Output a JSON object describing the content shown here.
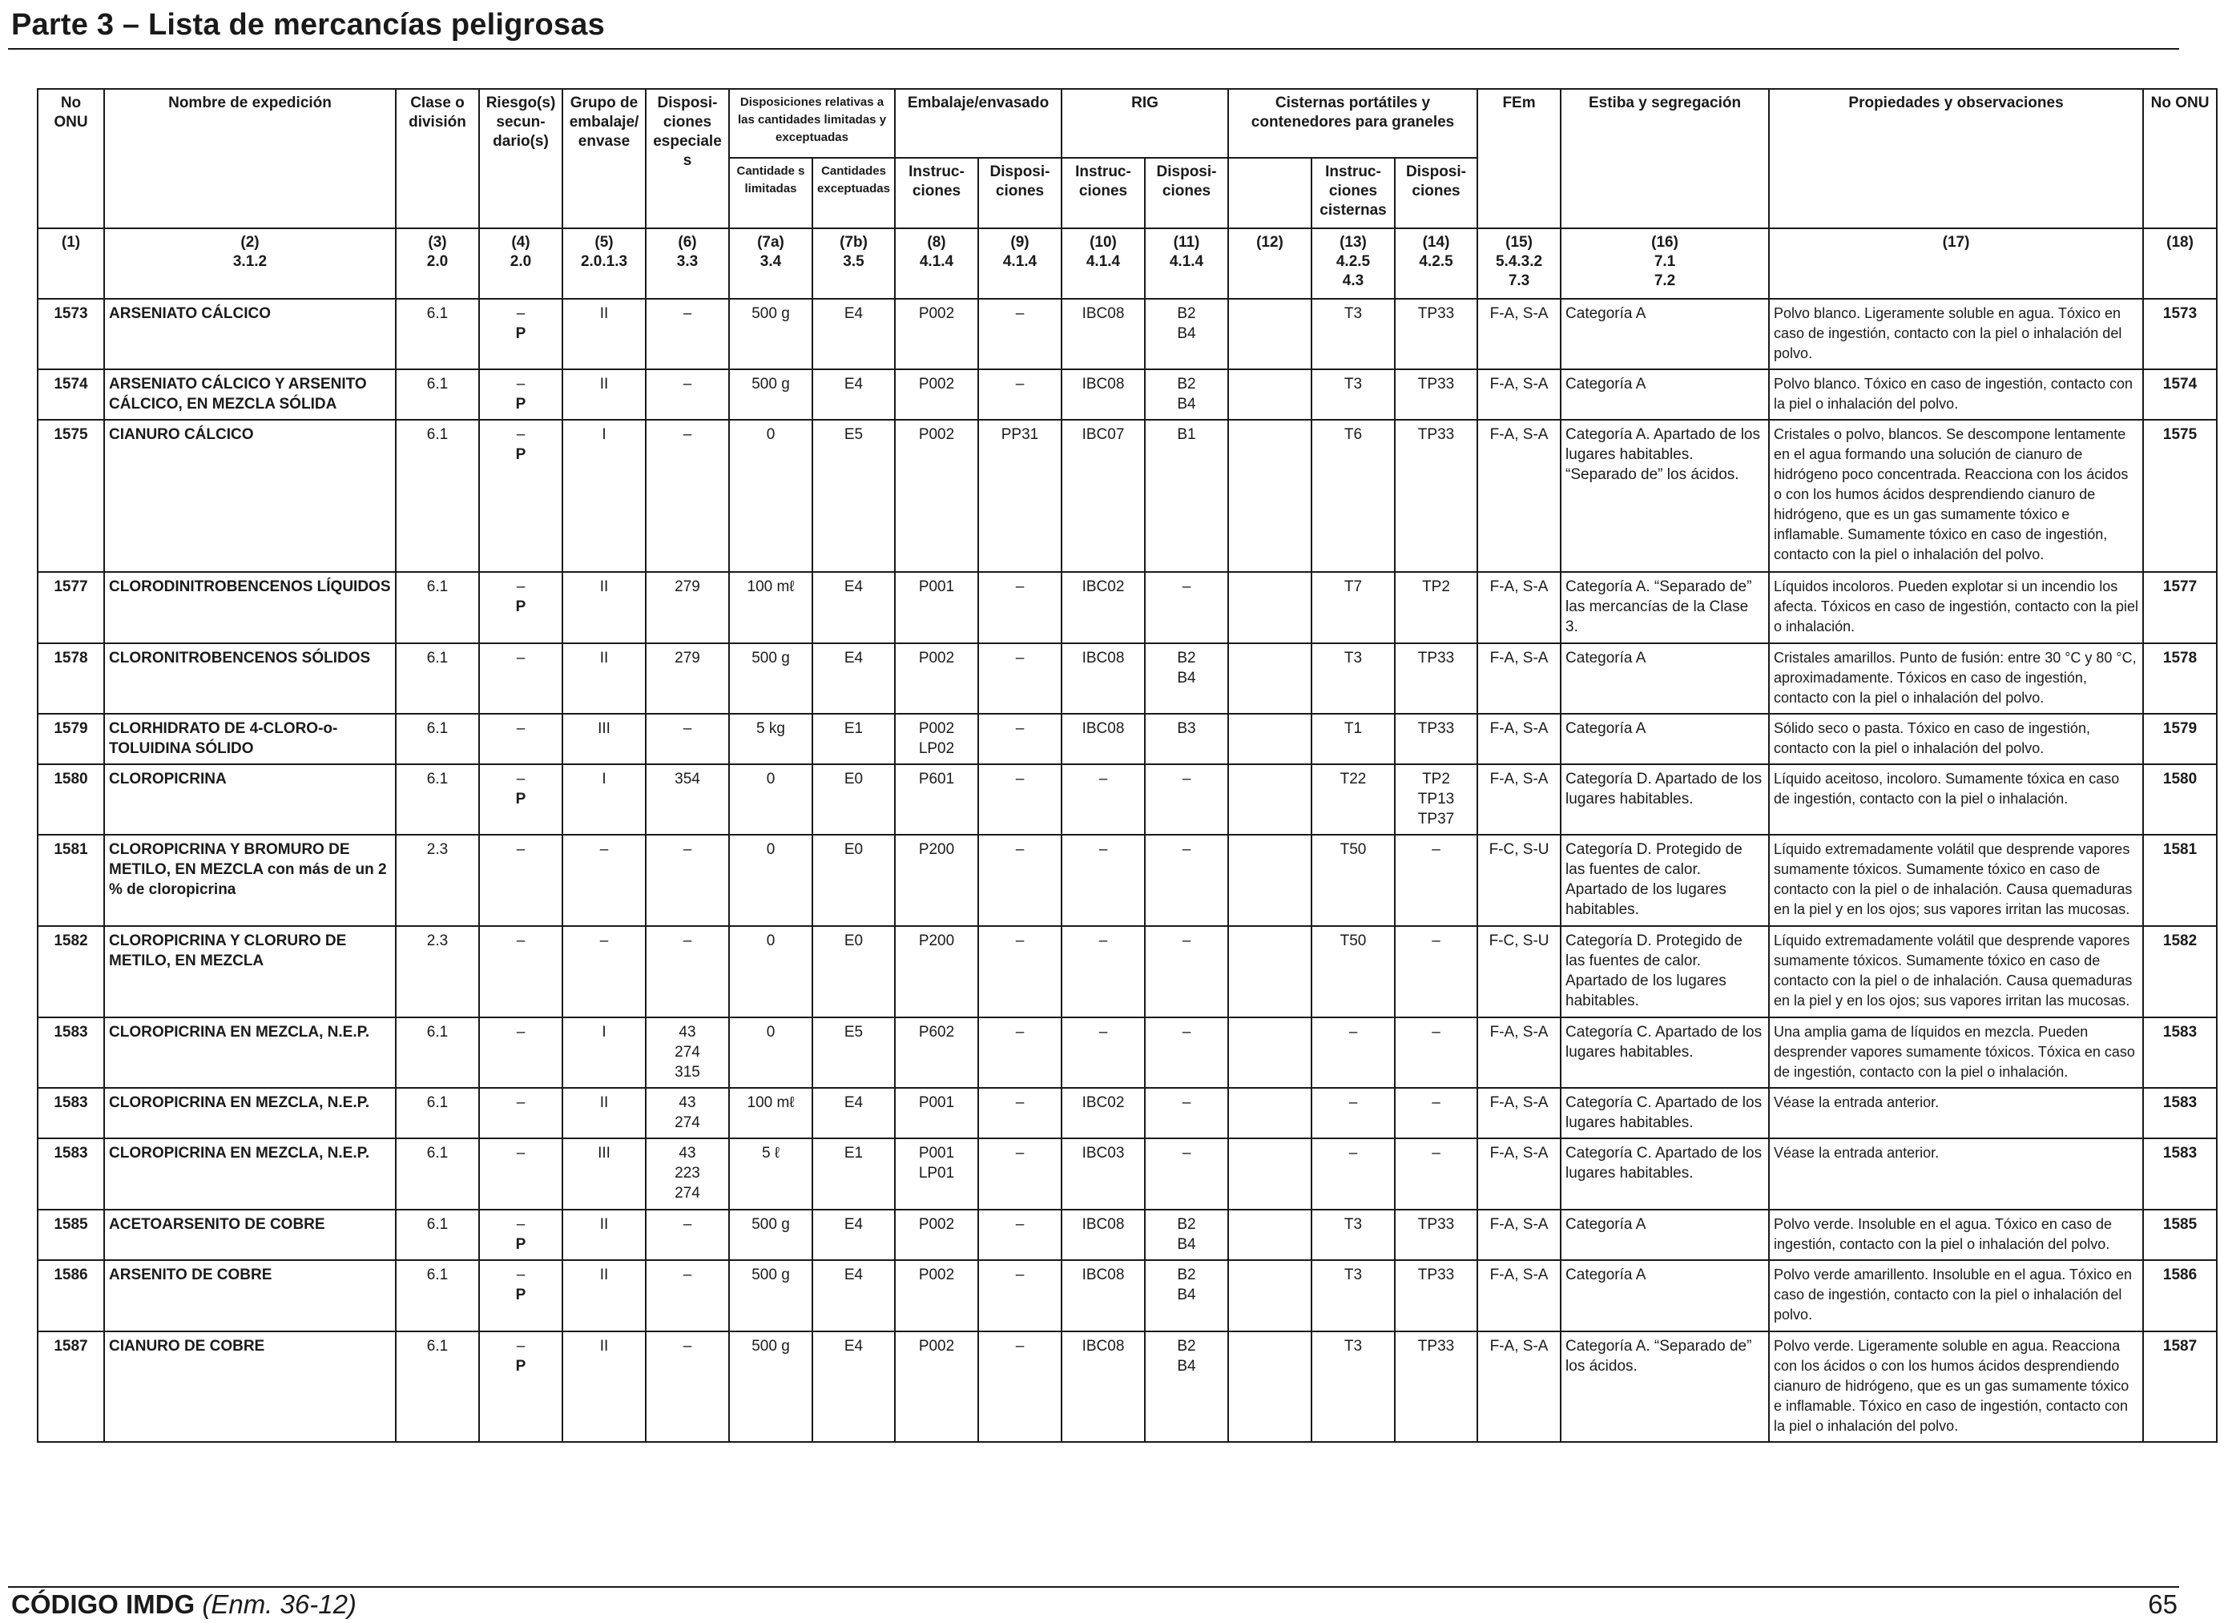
{
  "page": {
    "title": "Parte 3 – Lista de mercancías peligrosas",
    "footer_code": "CÓDIGO IMDG",
    "footer_edition": "(Enm. 36-12)",
    "page_number": "65"
  },
  "headers": {
    "col1": "No ONU",
    "col2": "Nombre de expedición",
    "col3": "Clase o división",
    "col4": "Riesgo(s) secun-dario(s)",
    "col5": "Grupo de embalaje/ envase",
    "col6": "Disposi-ciones especiales",
    "col7": "Disposiciones relativas a las cantidades limitadas y exceptuadas",
    "col7a": "Cantidade s limitadas",
    "col7b": "Cantidades exceptuadas",
    "col8_9": "Embalaje/envasado",
    "col8": "Instruc-ciones",
    "col9": "Disposi-ciones",
    "col10_11": "RIG",
    "col10": "Instruc-ciones",
    "col11": "Disposi-ciones",
    "col12_14": "Cisternas portátiles y contenedores para graneles",
    "col13": "Instruc-ciones cisternas",
    "col14": "Disposi-ciones",
    "col15": "FEm",
    "col16": "Estiba y segregación",
    "col17": "Propiedades y observaciones",
    "col18": "No ONU"
  },
  "refs": [
    [
      "(1)"
    ],
    [
      "(2)",
      "3.1.2"
    ],
    [
      "(3)",
      "2.0"
    ],
    [
      "(4)",
      "2.0"
    ],
    [
      "(5)",
      "2.0.1.3"
    ],
    [
      "(6)",
      "3.3"
    ],
    [
      "(7a)",
      "3.4"
    ],
    [
      "(7b)",
      "3.5"
    ],
    [
      "(8)",
      "4.1.4"
    ],
    [
      "(9)",
      "4.1.4"
    ],
    [
      "(10)",
      "4.1.4"
    ],
    [
      "(11)",
      "4.1.4"
    ],
    [
      "(12)"
    ],
    [
      "(13)",
      "4.2.5",
      "4.3"
    ],
    [
      "(14)",
      "4.2.5"
    ],
    [
      "(15)",
      "5.4.3.2",
      "7.3"
    ],
    [
      "(16)",
      "7.1",
      "7.2"
    ],
    [
      "(17)"
    ],
    [
      "(18)"
    ]
  ],
  "rows": [
    {
      "un": "1573",
      "name": [
        "ARSENIATO CÁLCICO"
      ],
      "cls": "6.1",
      "sub": [
        "–",
        "P"
      ],
      "pg": "II",
      "sp": [
        "–"
      ],
      "lq": "500 g",
      "eq": "E4",
      "pi": [
        "P002"
      ],
      "pp": "–",
      "ibc": "IBC08",
      "ibcp": [
        "B2",
        "B4"
      ],
      "c12": "",
      "tank": "T3",
      "tankp": [
        "TP33"
      ],
      "ems": "F-A, S-A",
      "stow": "Categoría A",
      "obs": "Polvo blanco. Ligeramente soluble en agua. Tóxico en caso de ingestión, contacto con la piel o inhalación del polvo."
    },
    {
      "un": "1574",
      "name": [
        "ARSENIATO CÁLCICO Y ARSENITO CÁLCICO, EN MEZCLA SÓLIDA"
      ],
      "cls": "6.1",
      "sub": [
        "–",
        "P"
      ],
      "pg": "II",
      "sp": [
        "–"
      ],
      "lq": "500 g",
      "eq": "E4",
      "pi": [
        "P002"
      ],
      "pp": "–",
      "ibc": "IBC08",
      "ibcp": [
        "B2",
        "B4"
      ],
      "c12": "",
      "tank": "T3",
      "tankp": [
        "TP33"
      ],
      "ems": "F-A, S-A",
      "stow": "Categoría A",
      "obs": "Polvo blanco. Tóxico en caso de ingestión, contacto con la piel o inhalación del polvo."
    },
    {
      "un": "1575",
      "name": [
        "CIANURO CÁLCICO"
      ],
      "cls": "6.1",
      "sub": [
        "–",
        "P"
      ],
      "pg": "I",
      "sp": [
        "–"
      ],
      "lq": "0",
      "eq": "E5",
      "pi": [
        "P002"
      ],
      "pp": "PP31",
      "ibc": "IBC07",
      "ibcp": [
        "B1"
      ],
      "c12": "",
      "tank": "T6",
      "tankp": [
        "TP33"
      ],
      "ems": "F-A, S-A",
      "stow": "Categoría A. Apartado de los lugares habitables. “Separado de” los ácidos.",
      "obs": "Cristales o polvo, blancos. Se descompone lentamente en el agua formando una solución de cianuro de hidrógeno poco concentrada. Reacciona con los ácidos o con los humos ácidos desprendiendo cianuro de hidrógeno, que es un gas sumamente tóxico e inflamable. Sumamente tóxico en caso de ingestión, contacto con la piel o inhalación del polvo."
    },
    {
      "un": "1577",
      "name": [
        "CLORODINITROBENCENOS LÍQUIDOS"
      ],
      "cls": "6.1",
      "sub": [
        "–",
        "P"
      ],
      "pg": "II",
      "sp": [
        "279"
      ],
      "lq": "100 mℓ",
      "eq": "E4",
      "pi": [
        "P001"
      ],
      "pp": "–",
      "ibc": "IBC02",
      "ibcp": [
        "–"
      ],
      "c12": "",
      "tank": "T7",
      "tankp": [
        "TP2"
      ],
      "ems": "F-A, S-A",
      "stow": "Categoría A. “Separado de” las mercancías de la Clase 3.",
      "obs": "Líquidos incoloros. Pueden explotar si un incendio los afecta. Tóxicos en caso de ingestión, contacto con la piel o inhalación."
    },
    {
      "un": "1578",
      "name": [
        "CLORONITROBENCENOS SÓLIDOS"
      ],
      "cls": "6.1",
      "sub": [
        "–"
      ],
      "pg": "II",
      "sp": [
        "279"
      ],
      "lq": "500 g",
      "eq": "E4",
      "pi": [
        "P002"
      ],
      "pp": "–",
      "ibc": "IBC08",
      "ibcp": [
        "B2",
        "B4"
      ],
      "c12": "",
      "tank": "T3",
      "tankp": [
        "TP33"
      ],
      "ems": "F-A, S-A",
      "stow": "Categoría A",
      "obs": "Cristales amarillos. Punto de fusión: entre 30 °C y 80 °C, aproximadamente. Tóxicos en caso de ingestión, contacto con la piel o inhalación del polvo."
    },
    {
      "un": "1579",
      "name": [
        "CLORHIDRATO DE 4-CLORO-o-TOLUIDINA SÓLIDO"
      ],
      "cls": "6.1",
      "sub": [
        "–"
      ],
      "pg": "III",
      "sp": [
        "–"
      ],
      "lq": "5 kg",
      "eq": "E1",
      "pi": [
        "P002",
        "LP02"
      ],
      "pp": "–",
      "ibc": "IBC08",
      "ibcp": [
        "B3"
      ],
      "c12": "",
      "tank": "T1",
      "tankp": [
        "TP33"
      ],
      "ems": "F-A, S-A",
      "stow": "Categoría A",
      "obs": "Sólido seco o pasta. Tóxico en caso de ingestión, contacto con la piel o inhalación del polvo."
    },
    {
      "un": "1580",
      "name": [
        "CLOROPICRINA"
      ],
      "cls": "6.1",
      "sub": [
        "–",
        "P"
      ],
      "pg": "I",
      "sp": [
        "354"
      ],
      "lq": "0",
      "eq": "E0",
      "pi": [
        "P601"
      ],
      "pp": "–",
      "ibc": "–",
      "ibcp": [
        "–"
      ],
      "c12": "",
      "tank": "T22",
      "tankp": [
        "TP2",
        "TP13",
        "TP37"
      ],
      "ems": "F-A, S-A",
      "stow": "Categoría D. Apartado de los lugares habitables.",
      "obs": "Líquido aceitoso, incoloro. Sumamente tóxica en caso de ingestión, contacto con la piel o inhalación."
    },
    {
      "un": "1581",
      "name": [
        "CLOROPICRINA Y BROMURO DE METILO, EN MEZCLA",
        "con más de un 2 % de cloropicrina"
      ],
      "cls": "2.3",
      "sub": [
        "–"
      ],
      "pg": "–",
      "sp": [
        "–"
      ],
      "lq": "0",
      "eq": "E0",
      "pi": [
        "P200"
      ],
      "pp": "–",
      "ibc": "–",
      "ibcp": [
        "–"
      ],
      "c12": "",
      "tank": "T50",
      "tankp": [
        "–"
      ],
      "ems": "F-C, S-U",
      "stow": "Categoría D. Protegido de las fuentes de calor. Apartado de los lugares habitables.",
      "obs": "Líquido extremadamente volátil que desprende vapores sumamente tóxicos. Sumamente tóxico en caso de contacto con la piel o de inhalación. Causa quemaduras en la piel y en los ojos; sus vapores irritan las mucosas."
    },
    {
      "un": "1582",
      "name": [
        "CLOROPICRINA Y CLORURO DE METILO, EN MEZCLA"
      ],
      "cls": "2.3",
      "sub": [
        "–"
      ],
      "pg": "–",
      "sp": [
        "–"
      ],
      "lq": "0",
      "eq": "E0",
      "pi": [
        "P200"
      ],
      "pp": "–",
      "ibc": "–",
      "ibcp": [
        "–"
      ],
      "c12": "",
      "tank": "T50",
      "tankp": [
        "–"
      ],
      "ems": "F-C, S-U",
      "stow": "Categoría D. Protegido de las fuentes de calor. Apartado de los lugares habitables.",
      "obs": "Líquido extremadamente volátil que desprende vapores sumamente tóxicos. Sumamente tóxico en caso de contacto con la piel o de inhalación. Causa quemaduras en la piel y en los ojos; sus vapores irritan las mucosas."
    },
    {
      "un": "1583",
      "name": [
        "CLOROPICRINA EN MEZCLA, N.E.P."
      ],
      "cls": "6.1",
      "sub": [
        "–"
      ],
      "pg": "I",
      "sp": [
        "43",
        "274",
        "315"
      ],
      "lq": "0",
      "eq": "E5",
      "pi": [
        "P602"
      ],
      "pp": "–",
      "ibc": "–",
      "ibcp": [
        "–"
      ],
      "c12": "",
      "tank": "–",
      "tankp": [
        "–"
      ],
      "ems": "F-A, S-A",
      "stow": "Categoría C. Apartado de los lugares habitables.",
      "obs": "Una amplia gama de líquidos en mezcla. Pueden desprender vapores sumamente tóxicos. Tóxica en caso de ingestión, contacto con la piel o inhalación."
    },
    {
      "un": "1583",
      "name": [
        "CLOROPICRINA EN MEZCLA, N.E.P."
      ],
      "cls": "6.1",
      "sub": [
        "–"
      ],
      "pg": "II",
      "sp": [
        "43",
        "274"
      ],
      "lq": "100 mℓ",
      "eq": "E4",
      "pi": [
        "P001"
      ],
      "pp": "–",
      "ibc": "IBC02",
      "ibcp": [
        "–"
      ],
      "c12": "",
      "tank": "–",
      "tankp": [
        "–"
      ],
      "ems": "F-A, S-A",
      "stow": "Categoría C. Apartado de los lugares habitables.",
      "obs": "Véase la entrada anterior."
    },
    {
      "un": "1583",
      "name": [
        "CLOROPICRINA EN MEZCLA, N.E.P."
      ],
      "cls": "6.1",
      "sub": [
        "–"
      ],
      "pg": "III",
      "sp": [
        "43",
        "223",
        "274"
      ],
      "lq": "5 ℓ",
      "eq": "E1",
      "pi": [
        "P001",
        "LP01"
      ],
      "pp": "–",
      "ibc": "IBC03",
      "ibcp": [
        "–"
      ],
      "c12": "",
      "tank": "–",
      "tankp": [
        "–"
      ],
      "ems": "F-A, S-A",
      "stow": "Categoría C. Apartado de los lugares habitables.",
      "obs": "Véase la entrada anterior."
    },
    {
      "un": "1585",
      "name": [
        "ACETOARSENITO DE COBRE"
      ],
      "cls": "6.1",
      "sub": [
        "–",
        "P"
      ],
      "pg": "II",
      "sp": [
        "–"
      ],
      "lq": "500 g",
      "eq": "E4",
      "pi": [
        "P002"
      ],
      "pp": "–",
      "ibc": "IBC08",
      "ibcp": [
        "B2",
        "B4"
      ],
      "c12": "",
      "tank": "T3",
      "tankp": [
        "TP33"
      ],
      "ems": "F-A, S-A",
      "stow": "Categoría A",
      "obs": "Polvo verde. Insoluble en el agua. Tóxico en caso de ingestión, contacto con la piel o inhalación del polvo."
    },
    {
      "un": "1586",
      "name": [
        "ARSENITO DE COBRE"
      ],
      "cls": "6.1",
      "sub": [
        "–",
        "P"
      ],
      "pg": "II",
      "sp": [
        "–"
      ],
      "lq": "500 g",
      "eq": "E4",
      "pi": [
        "P002"
      ],
      "pp": "–",
      "ibc": "IBC08",
      "ibcp": [
        "B2",
        "B4"
      ],
      "c12": "",
      "tank": "T3",
      "tankp": [
        "TP33"
      ],
      "ems": "F-A, S-A",
      "stow": "Categoría A",
      "obs": "Polvo verde amarillento. Insoluble en el agua. Tóxico en caso de ingestión, contacto con la piel o inhalación del polvo."
    },
    {
      "un": "1587",
      "name": [
        "CIANURO DE COBRE"
      ],
      "cls": "6.1",
      "sub": [
        "–",
        "P"
      ],
      "pg": "II",
      "sp": [
        "–"
      ],
      "lq": "500 g",
      "eq": "E4",
      "pi": [
        "P002"
      ],
      "pp": "–",
      "ibc": "IBC08",
      "ibcp": [
        "B2",
        "B4"
      ],
      "c12": "",
      "tank": "T3",
      "tankp": [
        "TP33"
      ],
      "ems": "F-A, S-A",
      "stow": "Categoría A. “Separado de” los ácidos.",
      "obs": "Polvo verde. Ligeramente soluble en agua. Reacciona con los ácidos o con los humos ácidos desprendiendo cianuro de hidrógeno, que es un gas sumamente tóxico e inflamable. Tóxico en caso de ingestión, contacto con la piel o inhalación del polvo."
    }
  ]
}
